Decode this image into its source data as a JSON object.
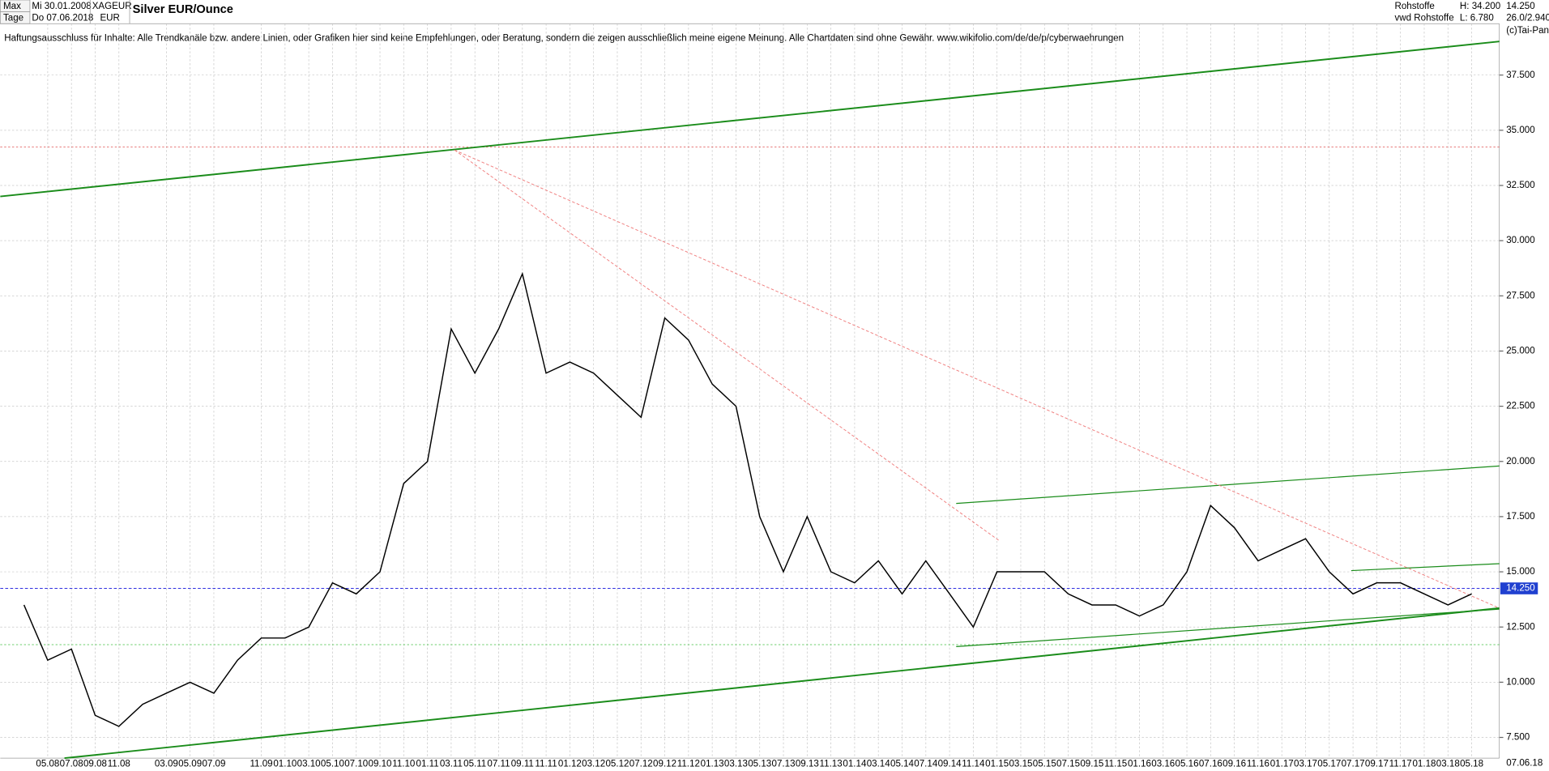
{
  "header": {
    "range": "Max",
    "start": "Mi 30.01.2008",
    "period": "Tage",
    "end": "Do 07.06.2018",
    "symbol": "XAGEUR",
    "currency": "EUR",
    "source1": "Rohstoffe",
    "source2": "vwd Rohstoffe",
    "high": "H: 34.200",
    "low": "L: 6.780",
    "last": "14.250",
    "info": "26.0/2.940",
    "copyright": "(c)Tai-Pan"
  },
  "chart_data": {
    "type": "line",
    "title": "Silver EUR/Ounce",
    "subtitle": "Haftungsausschluss für Inhalte: Alle Trendkanäle bzw. andere Linien, oder Grafiken hier sind keine Empfehlungen, oder Beratung, sondern die zeigen ausschließlich meine eigene Meinung. Alle Chartdaten sind ohne Gewähr.  www.wikifolio.com/de/de/p/cyberwaehrungen",
    "categories": [
      null,
      "05.08",
      "07.08",
      "09.08",
      "11.08",
      null,
      "03.09",
      "05.09",
      "07.09",
      null,
      "11.09",
      "01.10",
      "03.10",
      "05.10",
      "07.10",
      "09.10",
      "11.10",
      "01.11",
      "03.11",
      "05.11",
      "07.11",
      "09.11",
      "11.11",
      "01.12",
      "03.12",
      "05.12",
      "07.12",
      "09.12",
      "11.12",
      "01.13",
      "03.13",
      "05.13",
      "07.13",
      "09.13",
      "11.13",
      "01.14",
      "03.14",
      "05.14",
      "07.14",
      "09.14",
      "11.14",
      "01.15",
      "03.15",
      "05.15",
      "07.15",
      "09.15",
      "11.15",
      "01.16",
      "03.16",
      "05.16",
      "07.16",
      "09.16",
      "11.16",
      "01.17",
      "03.17",
      "05.17",
      "07.17",
      "09.17",
      "11.17",
      "01.18",
      "03.18",
      "05.18"
    ],
    "series": [
      {
        "name": "Silver EUR/Ounce",
        "color": "#000000",
        "values": [
          13.5,
          11.0,
          11.5,
          8.5,
          8.0,
          9.0,
          9.5,
          10.0,
          9.5,
          11.0,
          12.0,
          12.0,
          12.5,
          14.5,
          14.0,
          15.0,
          19.0,
          20.0,
          26.0,
          24.0,
          26.0,
          28.5,
          24.0,
          24.5,
          24.0,
          23.0,
          22.0,
          26.5,
          25.5,
          23.5,
          22.5,
          17.5,
          15.0,
          17.5,
          15.0,
          14.5,
          15.5,
          14.0,
          15.5,
          14.0,
          12.5,
          15.0,
          15.0,
          15.0,
          14.0,
          13.5,
          13.5,
          13.0,
          13.5,
          15.0,
          18.0,
          17.0,
          15.5,
          16.0,
          16.5,
          15.0,
          14.0,
          14.5,
          14.5,
          14.0,
          13.5,
          14.0
        ]
      }
    ],
    "last_price": {
      "value": 14.25,
      "label": "14.250"
    },
    "end_date": "07.06.18",
    "ylim": [
      6.56,
      40.9
    ],
    "yticks": [
      {
        "value": 7.5,
        "label": "7.500"
      },
      {
        "value": 10,
        "label": "10.000"
      },
      {
        "value": 12.5,
        "label": "12.500"
      },
      {
        "value": 15,
        "label": "15.000"
      },
      {
        "value": 17.5,
        "label": "17.500"
      },
      {
        "value": 20,
        "label": "20.000"
      },
      {
        "value": 22.5,
        "label": "22.500"
      },
      {
        "value": 25,
        "label": "25.000"
      },
      {
        "value": 27.5,
        "label": "27.500"
      },
      {
        "value": 30,
        "label": "30.000"
      },
      {
        "value": 32.5,
        "label": "32.500"
      },
      {
        "value": 35,
        "label": "35.000"
      },
      {
        "value": 37.5,
        "label": "37.500"
      }
    ],
    "grid": true
  }
}
